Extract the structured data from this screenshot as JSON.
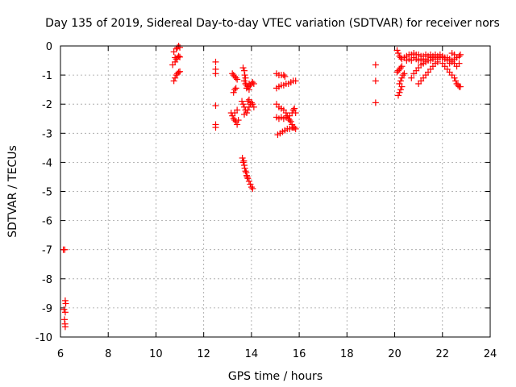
{
  "chart_data": {
    "type": "scatter",
    "title": "Day 135 of 2019, Sidereal Day-to-day VTEC variation (SDTVAR) for receiver nors",
    "xlabel": "GPS time / hours",
    "ylabel": "SDTVAR / TECUs",
    "xlim": [
      6,
      24
    ],
    "ylim": [
      -10,
      0
    ],
    "xticks": [
      "6",
      "8",
      "10",
      "12",
      "14",
      "16",
      "18",
      "20",
      "22",
      "24"
    ],
    "yticks": [
      "0",
      "-1",
      "-2",
      "-3",
      "-4",
      "-5",
      "-6",
      "-7",
      "-8",
      "-9",
      "-10"
    ],
    "grid": true,
    "marker": "plus",
    "color": "#ff0000",
    "series": [
      {
        "name": "nors",
        "points": [
          [
            6.12,
            -7.0
          ],
          [
            6.18,
            -7.0
          ],
          [
            6.2,
            -8.75
          ],
          [
            6.22,
            -8.85
          ],
          [
            6.15,
            -9.05
          ],
          [
            6.2,
            -9.15
          ],
          [
            6.17,
            -9.4
          ],
          [
            6.19,
            -9.55
          ],
          [
            6.2,
            -9.65
          ],
          [
            10.75,
            -0.2
          ],
          [
            10.8,
            -0.4
          ],
          [
            10.85,
            -0.1
          ],
          [
            10.9,
            -0.05
          ],
          [
            10.95,
            -0.0
          ],
          [
            11.0,
            -0.05
          ],
          [
            10.8,
            -0.55
          ],
          [
            10.85,
            -0.45
          ],
          [
            10.9,
            -0.4
          ],
          [
            10.95,
            -0.35
          ],
          [
            11.0,
            -0.38
          ],
          [
            10.75,
            -1.2
          ],
          [
            10.8,
            -1.1
          ],
          [
            10.85,
            -1.0
          ],
          [
            10.9,
            -0.95
          ],
          [
            10.95,
            -0.9
          ],
          [
            11.0,
            -0.88
          ],
          [
            10.7,
            -0.65
          ],
          [
            12.5,
            -0.55
          ],
          [
            12.5,
            -0.8
          ],
          [
            12.5,
            -0.95
          ],
          [
            12.5,
            -2.05
          ],
          [
            12.5,
            -2.7
          ],
          [
            12.5,
            -2.8
          ],
          [
            13.2,
            -0.95
          ],
          [
            13.25,
            -1.0
          ],
          [
            13.3,
            -1.05
          ],
          [
            13.35,
            -1.1
          ],
          [
            13.4,
            -1.15
          ],
          [
            13.25,
            -1.6
          ],
          [
            13.3,
            -1.5
          ],
          [
            13.35,
            -1.45
          ],
          [
            13.15,
            -2.3
          ],
          [
            13.2,
            -2.4
          ],
          [
            13.25,
            -2.5
          ],
          [
            13.3,
            -2.55
          ],
          [
            13.35,
            -2.6
          ],
          [
            13.4,
            -2.7
          ],
          [
            13.45,
            -2.55
          ],
          [
            13.3,
            -2.3
          ],
          [
            13.4,
            -2.2
          ],
          [
            13.65,
            -0.75
          ],
          [
            13.7,
            -0.85
          ],
          [
            13.72,
            -1.0
          ],
          [
            13.75,
            -1.1
          ],
          [
            13.7,
            -1.2
          ],
          [
            13.75,
            -1.3
          ],
          [
            13.8,
            -1.35
          ],
          [
            13.85,
            -1.4
          ],
          [
            13.9,
            -1.3
          ],
          [
            13.95,
            -1.35
          ],
          [
            14.0,
            -1.3
          ],
          [
            14.05,
            -1.25
          ],
          [
            14.1,
            -1.3
          ],
          [
            13.8,
            -1.45
          ],
          [
            13.9,
            -1.5
          ],
          [
            13.6,
            -1.9
          ],
          [
            13.65,
            -2.0
          ],
          [
            13.7,
            -2.1
          ],
          [
            13.75,
            -2.2
          ],
          [
            13.8,
            -2.3
          ],
          [
            13.85,
            -2.2
          ],
          [
            13.9,
            -2.1
          ],
          [
            13.95,
            -2.0
          ],
          [
            14.0,
            -1.95
          ],
          [
            14.05,
            -2.0
          ],
          [
            14.1,
            -2.1
          ],
          [
            13.85,
            -1.9
          ],
          [
            13.9,
            -1.85
          ],
          [
            13.7,
            -2.35
          ],
          [
            13.62,
            -3.85
          ],
          [
            13.65,
            -4.0
          ],
          [
            13.7,
            -4.1
          ],
          [
            13.72,
            -4.2
          ],
          [
            13.75,
            -4.3
          ],
          [
            13.78,
            -4.35
          ],
          [
            13.8,
            -4.45
          ],
          [
            13.85,
            -4.55
          ],
          [
            13.9,
            -4.65
          ],
          [
            13.95,
            -4.75
          ],
          [
            14.0,
            -4.85
          ],
          [
            14.05,
            -4.9
          ],
          [
            13.68,
            -3.95
          ],
          [
            13.82,
            -4.5
          ],
          [
            15.05,
            -0.95
          ],
          [
            15.15,
            -1.0
          ],
          [
            15.25,
            -1.0
          ],
          [
            15.35,
            -1.0
          ],
          [
            15.4,
            -1.05
          ],
          [
            15.05,
            -1.45
          ],
          [
            15.15,
            -1.4
          ],
          [
            15.25,
            -1.35
          ],
          [
            15.35,
            -1.35
          ],
          [
            15.45,
            -1.3
          ],
          [
            15.55,
            -1.3
          ],
          [
            15.65,
            -1.25
          ],
          [
            15.75,
            -1.2
          ],
          [
            15.85,
            -1.2
          ],
          [
            15.05,
            -2.0
          ],
          [
            15.15,
            -2.1
          ],
          [
            15.25,
            -2.15
          ],
          [
            15.35,
            -2.2
          ],
          [
            15.45,
            -2.3
          ],
          [
            15.5,
            -2.4
          ],
          [
            15.55,
            -2.5
          ],
          [
            15.6,
            -2.55
          ],
          [
            15.65,
            -2.6
          ],
          [
            15.7,
            -2.7
          ],
          [
            15.75,
            -2.8
          ],
          [
            15.05,
            -2.45
          ],
          [
            15.15,
            -2.5
          ],
          [
            15.25,
            -2.45
          ],
          [
            15.35,
            -2.5
          ],
          [
            15.45,
            -2.45
          ],
          [
            15.6,
            -2.4
          ],
          [
            15.7,
            -2.3
          ],
          [
            15.75,
            -2.2
          ],
          [
            15.8,
            -2.15
          ],
          [
            15.85,
            -2.3
          ],
          [
            15.1,
            -3.05
          ],
          [
            15.2,
            -3.0
          ],
          [
            15.3,
            -2.95
          ],
          [
            15.4,
            -2.9
          ],
          [
            15.5,
            -2.85
          ],
          [
            15.6,
            -2.85
          ],
          [
            15.7,
            -2.8
          ],
          [
            15.8,
            -2.8
          ],
          [
            15.85,
            -2.85
          ],
          [
            19.2,
            -0.65
          ],
          [
            19.2,
            -1.2
          ],
          [
            19.2,
            -1.95
          ],
          [
            20.1,
            -0.15
          ],
          [
            20.15,
            -0.25
          ],
          [
            20.2,
            -0.35
          ],
          [
            20.25,
            -0.4
          ],
          [
            20.3,
            -0.45
          ],
          [
            20.1,
            -0.9
          ],
          [
            20.15,
            -0.85
          ],
          [
            20.2,
            -0.8
          ],
          [
            20.25,
            -0.75
          ],
          [
            20.3,
            -0.7
          ],
          [
            20.2,
            -1.3
          ],
          [
            20.25,
            -1.2
          ],
          [
            20.3,
            -1.1
          ],
          [
            20.35,
            -1.0
          ],
          [
            20.4,
            -0.95
          ],
          [
            20.15,
            -1.7
          ],
          [
            20.2,
            -1.6
          ],
          [
            20.25,
            -1.5
          ],
          [
            20.3,
            -1.4
          ],
          [
            20.4,
            -0.4
          ],
          [
            20.5,
            -0.35
          ],
          [
            20.6,
            -0.3
          ],
          [
            20.7,
            -0.3
          ],
          [
            20.8,
            -0.25
          ],
          [
            20.9,
            -0.3
          ],
          [
            21.0,
            -0.3
          ],
          [
            21.1,
            -0.35
          ],
          [
            21.2,
            -0.35
          ],
          [
            21.3,
            -0.3
          ],
          [
            21.4,
            -0.35
          ],
          [
            21.5,
            -0.4
          ],
          [
            20.5,
            -0.5
          ],
          [
            20.6,
            -0.45
          ],
          [
            20.7,
            -0.5
          ],
          [
            20.8,
            -0.4
          ],
          [
            20.9,
            -0.45
          ],
          [
            21.0,
            -0.5
          ],
          [
            21.1,
            -0.45
          ],
          [
            21.2,
            -0.5
          ],
          [
            21.3,
            -0.45
          ],
          [
            21.4,
            -0.5
          ],
          [
            20.7,
            -1.1
          ],
          [
            20.8,
            -0.95
          ],
          [
            20.9,
            -0.85
          ],
          [
            21.0,
            -0.75
          ],
          [
            21.1,
            -0.65
          ],
          [
            21.2,
            -0.6
          ],
          [
            21.3,
            -0.55
          ],
          [
            21.5,
            -0.5
          ],
          [
            21.6,
            -0.45
          ],
          [
            21.7,
            -0.4
          ],
          [
            21.8,
            -0.45
          ],
          [
            21.9,
            -0.4
          ],
          [
            22.0,
            -0.4
          ],
          [
            22.1,
            -0.45
          ],
          [
            22.2,
            -0.4
          ],
          [
            22.3,
            -0.45
          ],
          [
            22.4,
            -0.5
          ],
          [
            22.5,
            -0.45
          ],
          [
            21.0,
            -1.3
          ],
          [
            21.1,
            -1.2
          ],
          [
            21.2,
            -1.1
          ],
          [
            21.3,
            -1.0
          ],
          [
            21.4,
            -0.9
          ],
          [
            21.5,
            -0.8
          ],
          [
            21.6,
            -0.7
          ],
          [
            21.7,
            -0.6
          ],
          [
            21.8,
            -0.55
          ],
          [
            21.5,
            -0.3
          ],
          [
            21.6,
            -0.35
          ],
          [
            21.7,
            -0.3
          ],
          [
            21.8,
            -0.35
          ],
          [
            21.9,
            -0.3
          ],
          [
            22.0,
            -0.35
          ],
          [
            22.1,
            -0.4
          ],
          [
            22.2,
            -0.5
          ],
          [
            22.3,
            -0.6
          ],
          [
            22.4,
            -0.55
          ],
          [
            22.0,
            -0.6
          ],
          [
            22.1,
            -0.7
          ],
          [
            22.2,
            -0.8
          ],
          [
            22.3,
            -0.9
          ],
          [
            22.4,
            -1.0
          ],
          [
            22.5,
            -1.1
          ],
          [
            22.55,
            -1.2
          ],
          [
            22.6,
            -1.3
          ],
          [
            22.65,
            -1.35
          ],
          [
            22.7,
            -1.4
          ],
          [
            22.75,
            -1.4
          ],
          [
            22.4,
            -0.25
          ],
          [
            22.5,
            -0.3
          ],
          [
            22.6,
            -0.4
          ],
          [
            22.7,
            -0.35
          ],
          [
            22.75,
            -0.3
          ],
          [
            22.5,
            -0.6
          ],
          [
            22.6,
            -0.7
          ],
          [
            22.7,
            -0.6
          ]
        ]
      }
    ]
  }
}
